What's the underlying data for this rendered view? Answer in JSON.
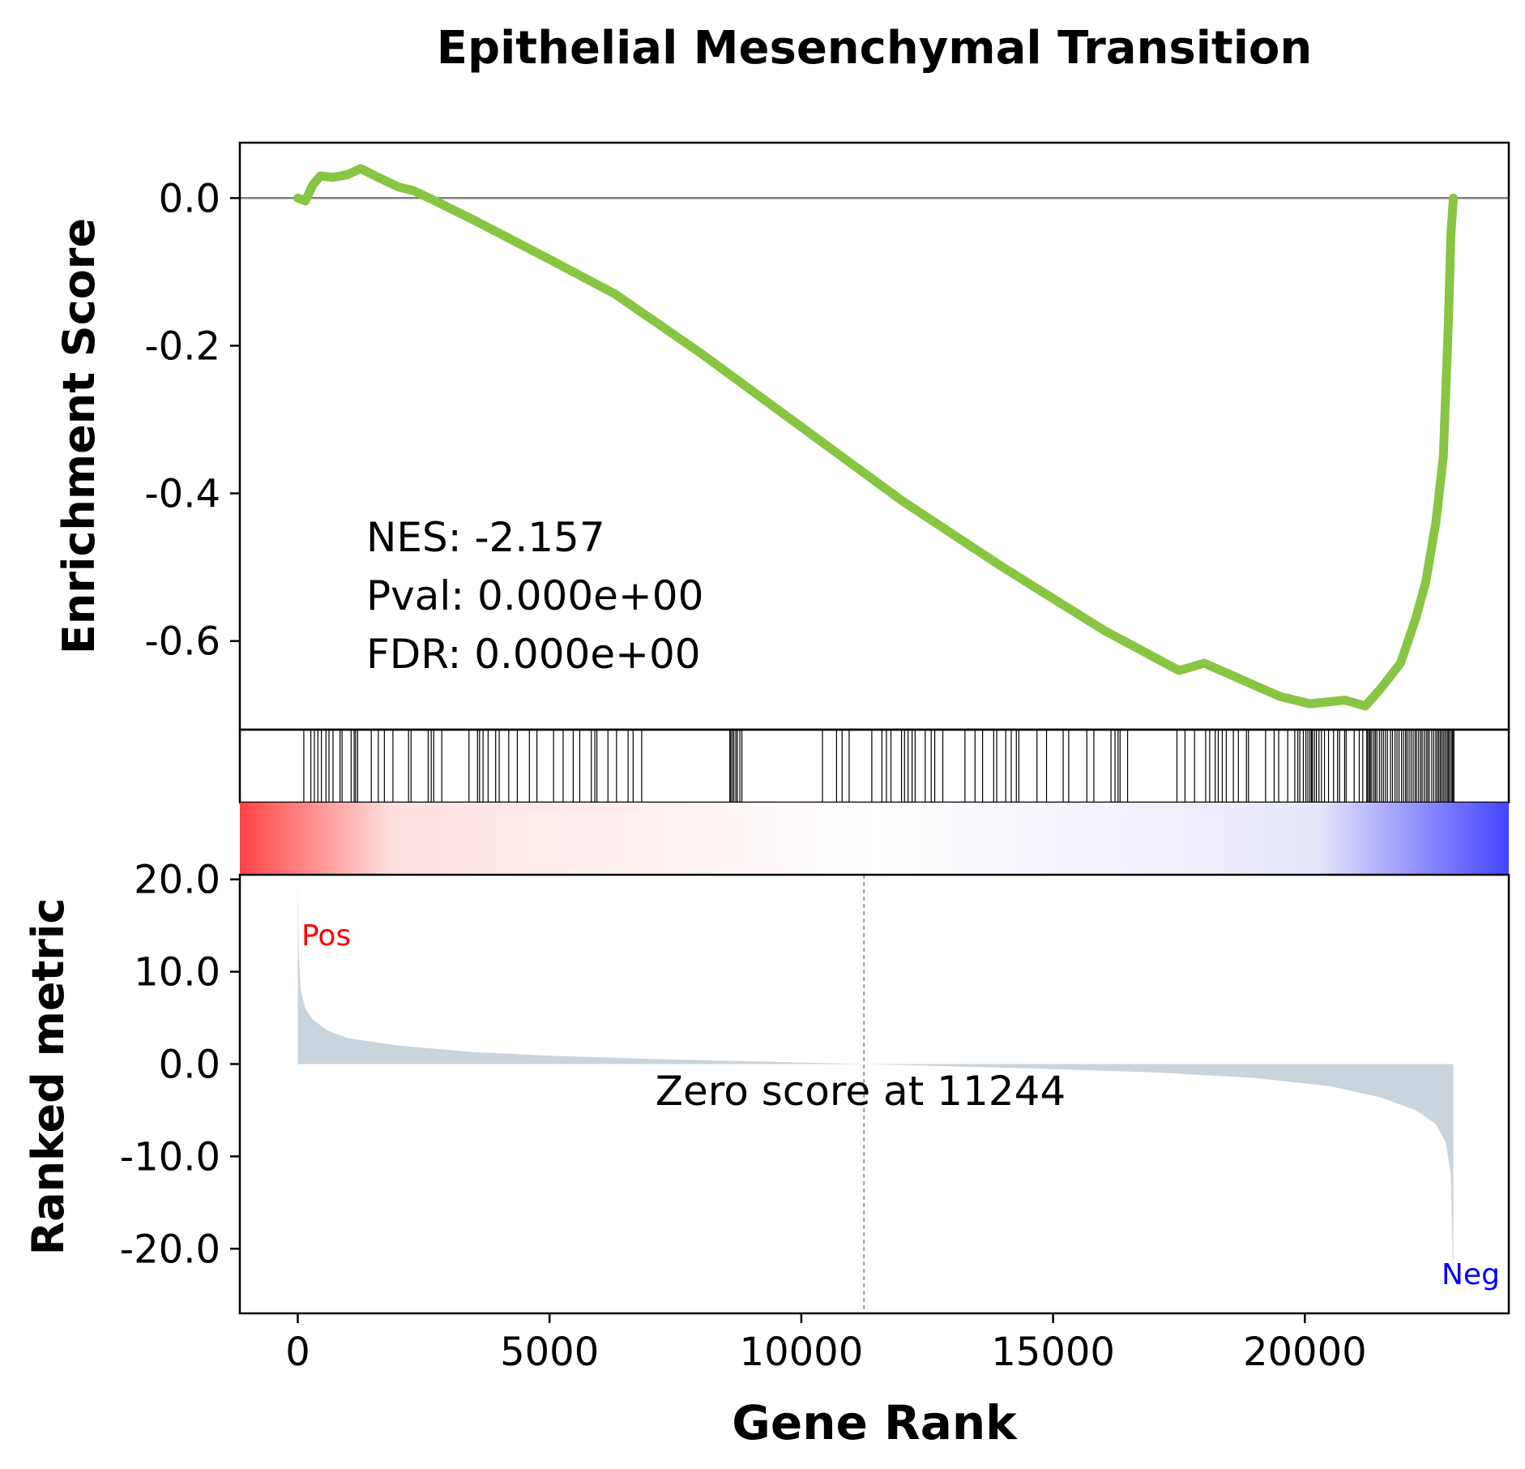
{
  "chart_data": {
    "title": "Epithelial Mesenchymal Transition",
    "xlabel": "Gene Rank",
    "x_ticks": [
      0,
      5000,
      10000,
      15000,
      20000
    ],
    "xlim": [
      -1150,
      24050
    ],
    "panels": {
      "enrichment": {
        "type": "line",
        "ylabel": "Enrichment Score",
        "ylim": [
          -0.72,
          0.075
        ],
        "y_ticks": [
          0.0,
          -0.2,
          -0.4,
          -0.6
        ],
        "y_tick_labels": [
          "0.0",
          "-0.2",
          "-0.4",
          "-0.6"
        ],
        "line_color": "#88c542",
        "baseline": 0.0,
        "stats": [
          "NES: -2.157",
          "Pval: 0.000e+00",
          "FDR: 0.000e+00"
        ],
        "series": [
          {
            "x": 0,
            "y": 0.0
          },
          {
            "x": 150,
            "y": -0.004
          },
          {
            "x": 300,
            "y": 0.018
          },
          {
            "x": 450,
            "y": 0.03
          },
          {
            "x": 700,
            "y": 0.028
          },
          {
            "x": 1000,
            "y": 0.032
          },
          {
            "x": 1250,
            "y": 0.04
          },
          {
            "x": 1600,
            "y": 0.028
          },
          {
            "x": 2000,
            "y": 0.015
          },
          {
            "x": 2300,
            "y": 0.01
          },
          {
            "x": 2700,
            "y": -0.003
          },
          {
            "x": 3500,
            "y": -0.03
          },
          {
            "x": 5000,
            "y": -0.083
          },
          {
            "x": 6300,
            "y": -0.13
          },
          {
            "x": 8000,
            "y": -0.21
          },
          {
            "x": 10000,
            "y": -0.31
          },
          {
            "x": 12000,
            "y": -0.41
          },
          {
            "x": 14000,
            "y": -0.5
          },
          {
            "x": 16000,
            "y": -0.585
          },
          {
            "x": 17500,
            "y": -0.64
          },
          {
            "x": 18000,
            "y": -0.63
          },
          {
            "x": 19500,
            "y": -0.675
          },
          {
            "x": 20100,
            "y": -0.685
          },
          {
            "x": 20800,
            "y": -0.68
          },
          {
            "x": 21200,
            "y": -0.688
          },
          {
            "x": 21500,
            "y": -0.665
          },
          {
            "x": 21900,
            "y": -0.63
          },
          {
            "x": 22200,
            "y": -0.57
          },
          {
            "x": 22400,
            "y": -0.52
          },
          {
            "x": 22600,
            "y": -0.44
          },
          {
            "x": 22750,
            "y": -0.35
          },
          {
            "x": 22850,
            "y": -0.17
          },
          {
            "x": 22900,
            "y": -0.05
          },
          {
            "x": 22950,
            "y": 0.0
          }
        ]
      },
      "hits": {
        "positions": [
          120,
          260,
          330,
          400,
          470,
          560,
          620,
          700,
          840,
          880,
          1060,
          1120,
          1150,
          1190,
          1460,
          1600,
          1720,
          1890,
          2200,
          2250,
          2590,
          2650,
          2700,
          2860,
          3400,
          3570,
          3610,
          3680,
          3780,
          3930,
          4000,
          4190,
          4360,
          4600,
          4750,
          5080,
          5270,
          5470,
          5600,
          5830,
          5900,
          5940,
          6160,
          6330,
          6560,
          6660,
          6830,
          8580,
          8600,
          8630,
          8660,
          8700,
          8730,
          8780,
          8820,
          10420,
          10700,
          10810,
          10950,
          11400,
          11600,
          11690,
          11780,
          11990,
          12050,
          12120,
          12200,
          12260,
          12460,
          12580,
          12650,
          12810,
          13250,
          13450,
          13600,
          13820,
          13880,
          14060,
          14170,
          14270,
          14320,
          14680,
          14870,
          15200,
          15310,
          15670,
          15810,
          16150,
          16230,
          16290,
          16330,
          16480,
          17460,
          17620,
          17810,
          18030,
          18110,
          18220,
          18280,
          18360,
          18440,
          18580,
          18680,
          18840,
          18880,
          19220,
          19390,
          19480,
          19660,
          19800,
          19860,
          19900,
          19970,
          20020,
          20060,
          20100,
          20130,
          20150,
          20190,
          20230,
          20280,
          20330,
          20390,
          20470,
          20570,
          20650,
          20690,
          20790,
          20820,
          20980,
          21080,
          21150,
          21230,
          21250,
          21280,
          21300,
          21330,
          21370,
          21400,
          21430,
          21480,
          21520,
          21560,
          21600,
          21640,
          21700,
          21740,
          21790,
          21830,
          21870,
          21920,
          21960,
          22000,
          22030,
          22070,
          22110,
          22150,
          22190,
          22220,
          22260,
          22300,
          22330,
          22370,
          22410,
          22440,
          22470,
          22520,
          22560,
          22600,
          22630,
          22660,
          22690,
          22720,
          22750,
          22780,
          22810,
          22840,
          22860,
          22890,
          22920,
          22940,
          22960
        ]
      },
      "gradient": {
        "colors": [
          "#ff4444",
          "#ffffff",
          "#4444ff"
        ]
      },
      "ranked_metric": {
        "type": "area",
        "ylabel": "Ranked metric",
        "ylim": [
          -27,
          20.5
        ],
        "y_ticks": [
          20,
          10,
          0,
          -10,
          -20
        ],
        "y_tick_labels": [
          "20.0",
          "10.0",
          "0.0",
          "-10.0",
          "-20.0"
        ],
        "fill_color": "#c9d4dd",
        "pos_label": "Pos",
        "neg_label": "Neg",
        "pos_color": "#ff0000",
        "neg_color": "#0000ff",
        "zero_cross": 11244,
        "zero_cross_label": "Zero score at 11244",
        "series": [
          {
            "x": 0,
            "y": 19.8
          },
          {
            "x": 20,
            "y": 12.0
          },
          {
            "x": 60,
            "y": 8.0
          },
          {
            "x": 150,
            "y": 6.0
          },
          {
            "x": 300,
            "y": 4.8
          },
          {
            "x": 600,
            "y": 3.6
          },
          {
            "x": 1000,
            "y": 2.8
          },
          {
            "x": 2000,
            "y": 2.0
          },
          {
            "x": 3500,
            "y": 1.3
          },
          {
            "x": 5000,
            "y": 0.9
          },
          {
            "x": 7000,
            "y": 0.55
          },
          {
            "x": 9000,
            "y": 0.3
          },
          {
            "x": 11244,
            "y": 0.0
          },
          {
            "x": 13000,
            "y": -0.25
          },
          {
            "x": 15000,
            "y": -0.55
          },
          {
            "x": 17000,
            "y": -0.9
          },
          {
            "x": 19000,
            "y": -1.5
          },
          {
            "x": 20500,
            "y": -2.4
          },
          {
            "x": 21500,
            "y": -3.6
          },
          {
            "x": 22200,
            "y": -5.0
          },
          {
            "x": 22600,
            "y": -6.5
          },
          {
            "x": 22800,
            "y": -8.5
          },
          {
            "x": 22900,
            "y": -12.0
          },
          {
            "x": 22950,
            "y": -24.8
          }
        ]
      }
    }
  }
}
